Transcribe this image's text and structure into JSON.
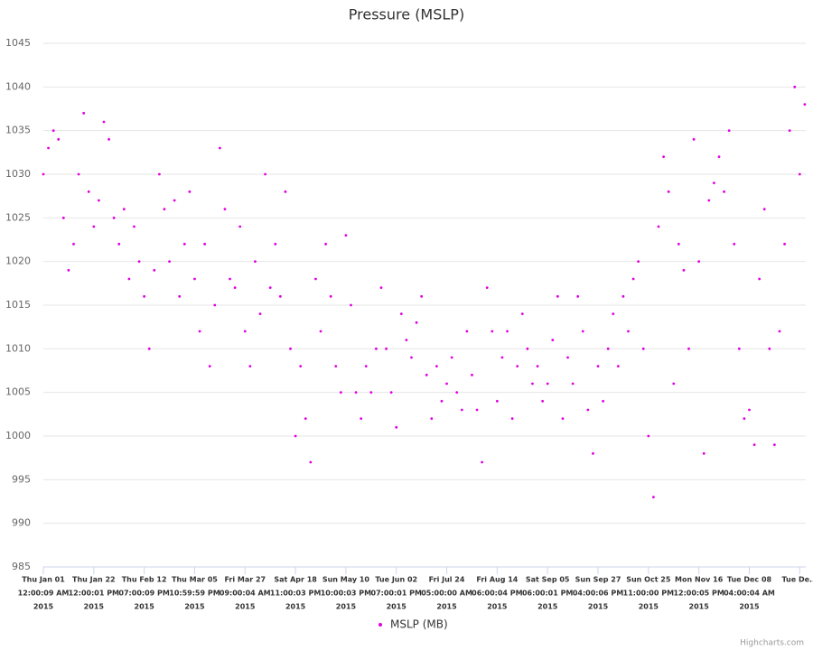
{
  "chart_data": {
    "type": "scatter",
    "title": "Pressure (MSLP)",
    "series": [
      {
        "name": "MSLP (MB)",
        "color": "#e100e1",
        "x": [
          0,
          0.1,
          0.2,
          0.3,
          0.4,
          0.5,
          0.6,
          0.7,
          0.8,
          0.9,
          1,
          1.1,
          1.2,
          1.3,
          1.4,
          1.5,
          1.6,
          1.7,
          1.8,
          1.9,
          2,
          2.1,
          2.2,
          2.3,
          2.4,
          2.5,
          2.6,
          2.7,
          2.8,
          2.9,
          3,
          3.1,
          3.2,
          3.3,
          3.4,
          3.5,
          3.6,
          3.7,
          3.8,
          3.9,
          4,
          4.1,
          4.2,
          4.3,
          4.4,
          4.5,
          4.6,
          4.7,
          4.8,
          4.9,
          5,
          5.1,
          5.2,
          5.3,
          5.4,
          5.5,
          5.6,
          5.7,
          5.8,
          5.9,
          6,
          6.1,
          6.2,
          6.3,
          6.4,
          6.5,
          6.6,
          6.7,
          6.8,
          6.9,
          7,
          7.1,
          7.2,
          7.3,
          7.4,
          7.5,
          7.6,
          7.7,
          7.8,
          7.9,
          8,
          8.1,
          8.2,
          8.3,
          8.4,
          8.5,
          8.6,
          8.7,
          8.8,
          8.9,
          9,
          9.1,
          9.2,
          9.3,
          9.4,
          9.5,
          9.6,
          9.7,
          9.8,
          9.9,
          10,
          10.1,
          10.2,
          10.3,
          10.4,
          10.5,
          10.6,
          10.7,
          10.8,
          10.9,
          11,
          11.1,
          11.2,
          11.3,
          11.4,
          11.5,
          11.6,
          11.7,
          11.8,
          11.9,
          12,
          12.1,
          12.2,
          12.3,
          12.4,
          12.5,
          12.6,
          12.7,
          12.8,
          12.9,
          13,
          13.1,
          13.2,
          13.3,
          13.4,
          13.5,
          13.6,
          13.7,
          13.8,
          13.9,
          14,
          14.1,
          14.2,
          14.3,
          14.4,
          14.5,
          14.6,
          14.7,
          14.8,
          14.9,
          15,
          15.1
        ],
        "values": [
          1030,
          1033,
          1035,
          1034,
          1025,
          1019,
          1022,
          1030,
          1037,
          1028,
          1024,
          1027,
          1036,
          1034,
          1025,
          1022,
          1026,
          1018,
          1024,
          1020,
          1016,
          1010,
          1019,
          1030,
          1026,
          1020,
          1027,
          1016,
          1022,
          1028,
          1018,
          1012,
          1022,
          1008,
          1015,
          1033,
          1026,
          1018,
          1017,
          1024,
          1012,
          1008,
          1020,
          1014,
          1030,
          1017,
          1022,
          1016,
          1028,
          1010,
          1000,
          1008,
          1002,
          997,
          1018,
          1012,
          1022,
          1016,
          1008,
          1005,
          1023,
          1015,
          1005,
          1002,
          1008,
          1005,
          1010,
          1017,
          1010,
          1005,
          1001,
          1014,
          1011,
          1009,
          1013,
          1016,
          1007,
          1002,
          1008,
          1004,
          1006,
          1009,
          1005,
          1003,
          1012,
          1007,
          1003,
          997,
          1017,
          1012,
          1004,
          1009,
          1012,
          1002,
          1008,
          1014,
          1010,
          1006,
          1008,
          1004,
          1006,
          1011,
          1016,
          1002,
          1009,
          1006,
          1016,
          1012,
          1003,
          998,
          1008,
          1004,
          1010,
          1014,
          1008,
          1016,
          1012,
          1018,
          1020,
          1010,
          1000,
          993,
          1024,
          1032,
          1028,
          1006,
          1022,
          1019,
          1010,
          1034,
          1020,
          998,
          1027,
          1029,
          1032,
          1028,
          1035,
          1022,
          1010,
          1002,
          1003,
          999,
          1018,
          1026,
          1010,
          999,
          1012,
          1022,
          1035,
          1040,
          1030,
          1038
        ]
      }
    ],
    "ylim": [
      985,
      1045
    ],
    "yticks": [
      985,
      990,
      995,
      1000,
      1005,
      1010,
      1015,
      1020,
      1025,
      1030,
      1035,
      1040,
      1045
    ],
    "xlim": [
      0,
      15.12
    ],
    "xticks": [
      {
        "value": 0,
        "label": [
          "Thu Jan 01",
          "12:00:09 AM",
          "2015"
        ]
      },
      {
        "value": 1,
        "label": [
          "Thu Jan 22",
          "12:00:01 PM",
          "2015"
        ]
      },
      {
        "value": 2,
        "label": [
          "Thu Feb 12",
          "07:00:09 PM",
          "2015"
        ]
      },
      {
        "value": 3,
        "label": [
          "Thu Mar 05",
          "10:59:59 PM",
          "2015"
        ]
      },
      {
        "value": 4,
        "label": [
          "Fri Mar 27",
          "09:00:04 AM",
          "2015"
        ]
      },
      {
        "value": 5,
        "label": [
          "Sat Apr 18",
          "11:00:03 PM",
          "2015"
        ]
      },
      {
        "value": 6,
        "label": [
          "Sun May 10",
          "10:00:03 PM",
          "2015"
        ]
      },
      {
        "value": 7,
        "label": [
          "Tue Jun 02",
          "07:00:01 PM",
          "2015"
        ]
      },
      {
        "value": 8,
        "label": [
          "Fri Jul 24",
          "05:00:00 AM",
          "2015"
        ]
      },
      {
        "value": 9,
        "label": [
          "Fri Aug 14",
          "06:00:04 PM",
          "2015"
        ]
      },
      {
        "value": 10,
        "label": [
          "Sat Sep 05",
          "06:00:01 PM",
          "2015"
        ]
      },
      {
        "value": 11,
        "label": [
          "Sun Sep 27",
          "04:00:06 PM",
          "2015"
        ]
      },
      {
        "value": 12,
        "label": [
          "Sun Oct 25",
          "11:00:00 PM",
          "2015"
        ]
      },
      {
        "value": 13,
        "label": [
          "Mon Nov 16",
          "12:00:05 PM",
          "2015"
        ]
      },
      {
        "value": 14,
        "label": [
          "Tue Dec 08",
          "04:00:04 AM",
          "2015"
        ]
      },
      {
        "value": 15,
        "label": [
          "Tue De..."
        ]
      }
    ],
    "grid": true,
    "legend": "bottom",
    "credits": "Highcharts.com"
  }
}
